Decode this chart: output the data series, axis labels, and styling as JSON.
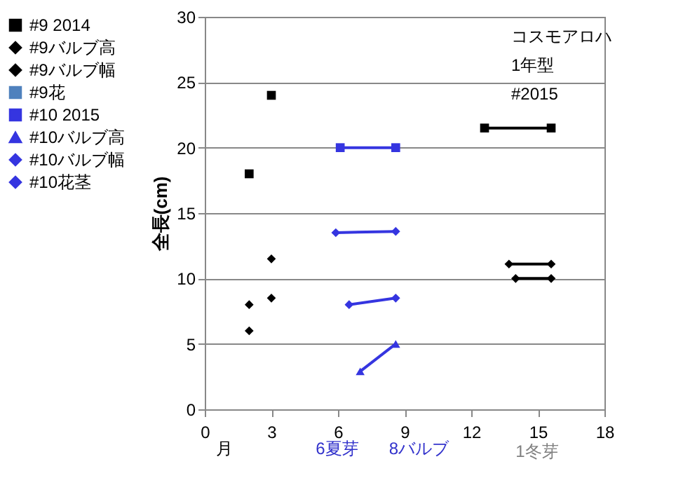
{
  "chart_data": {
    "type": "line",
    "ylabel": "全長(cm)",
    "xlim": [
      0,
      18
    ],
    "xticks": [
      0,
      3,
      6,
      9,
      12,
      15,
      18
    ],
    "ylim": [
      0,
      30
    ],
    "yticks": [
      0,
      5,
      10,
      15,
      20,
      25,
      30
    ],
    "grid": "y",
    "legend": "left",
    "annotations": [
      "コスモアロハ",
      "1年型",
      "#2015",
      "月",
      "6夏芽",
      "8バルブ",
      "1冬芽"
    ],
    "series": [
      {
        "name": "#9 2014",
        "color": "#000000",
        "marker": "square",
        "x": [
          2,
          2.5,
          3,
          7,
          12.6,
          15.6
        ],
        "values": [
          18,
          null,
          24,
          null,
          21.5,
          21.5
        ]
      },
      {
        "name": "#9バルブ高",
        "color": "#000000",
        "marker": "diamond",
        "x": [
          2,
          2.5,
          3,
          7,
          14,
          15.6
        ],
        "values": [
          6,
          null,
          8.5,
          null,
          10,
          10
        ]
      },
      {
        "name": "#9バルブ幅",
        "color": "#000000",
        "marker": "diamond",
        "x": [
          2,
          2.5,
          3,
          7,
          13.7,
          15.6
        ],
        "values": [
          8,
          null,
          11.5,
          null,
          11.1,
          11.1
        ]
      },
      {
        "name": "#9花",
        "color": "#4f81bd",
        "marker": "square"
      },
      {
        "name": "#10 2015",
        "color": "#3535e0",
        "marker": "square",
        "x": [
          6.1,
          8.6
        ],
        "values": [
          20,
          20
        ]
      },
      {
        "name": "#10バルブ高",
        "color": "#3535e0",
        "marker": "triangle",
        "x": [
          7,
          8.6
        ],
        "values": [
          2.9,
          5
        ]
      },
      {
        "name": "#10バルブ幅",
        "color": "#3535e0",
        "marker": "diamond",
        "x": [
          5.9,
          8.6
        ],
        "values": [
          13.5,
          13.6
        ]
      },
      {
        "name": "#10花茎",
        "color": "#3535e0",
        "marker": "diamond",
        "x": [
          6.5,
          8.6
        ],
        "values": [
          8,
          8.5
        ]
      }
    ]
  }
}
